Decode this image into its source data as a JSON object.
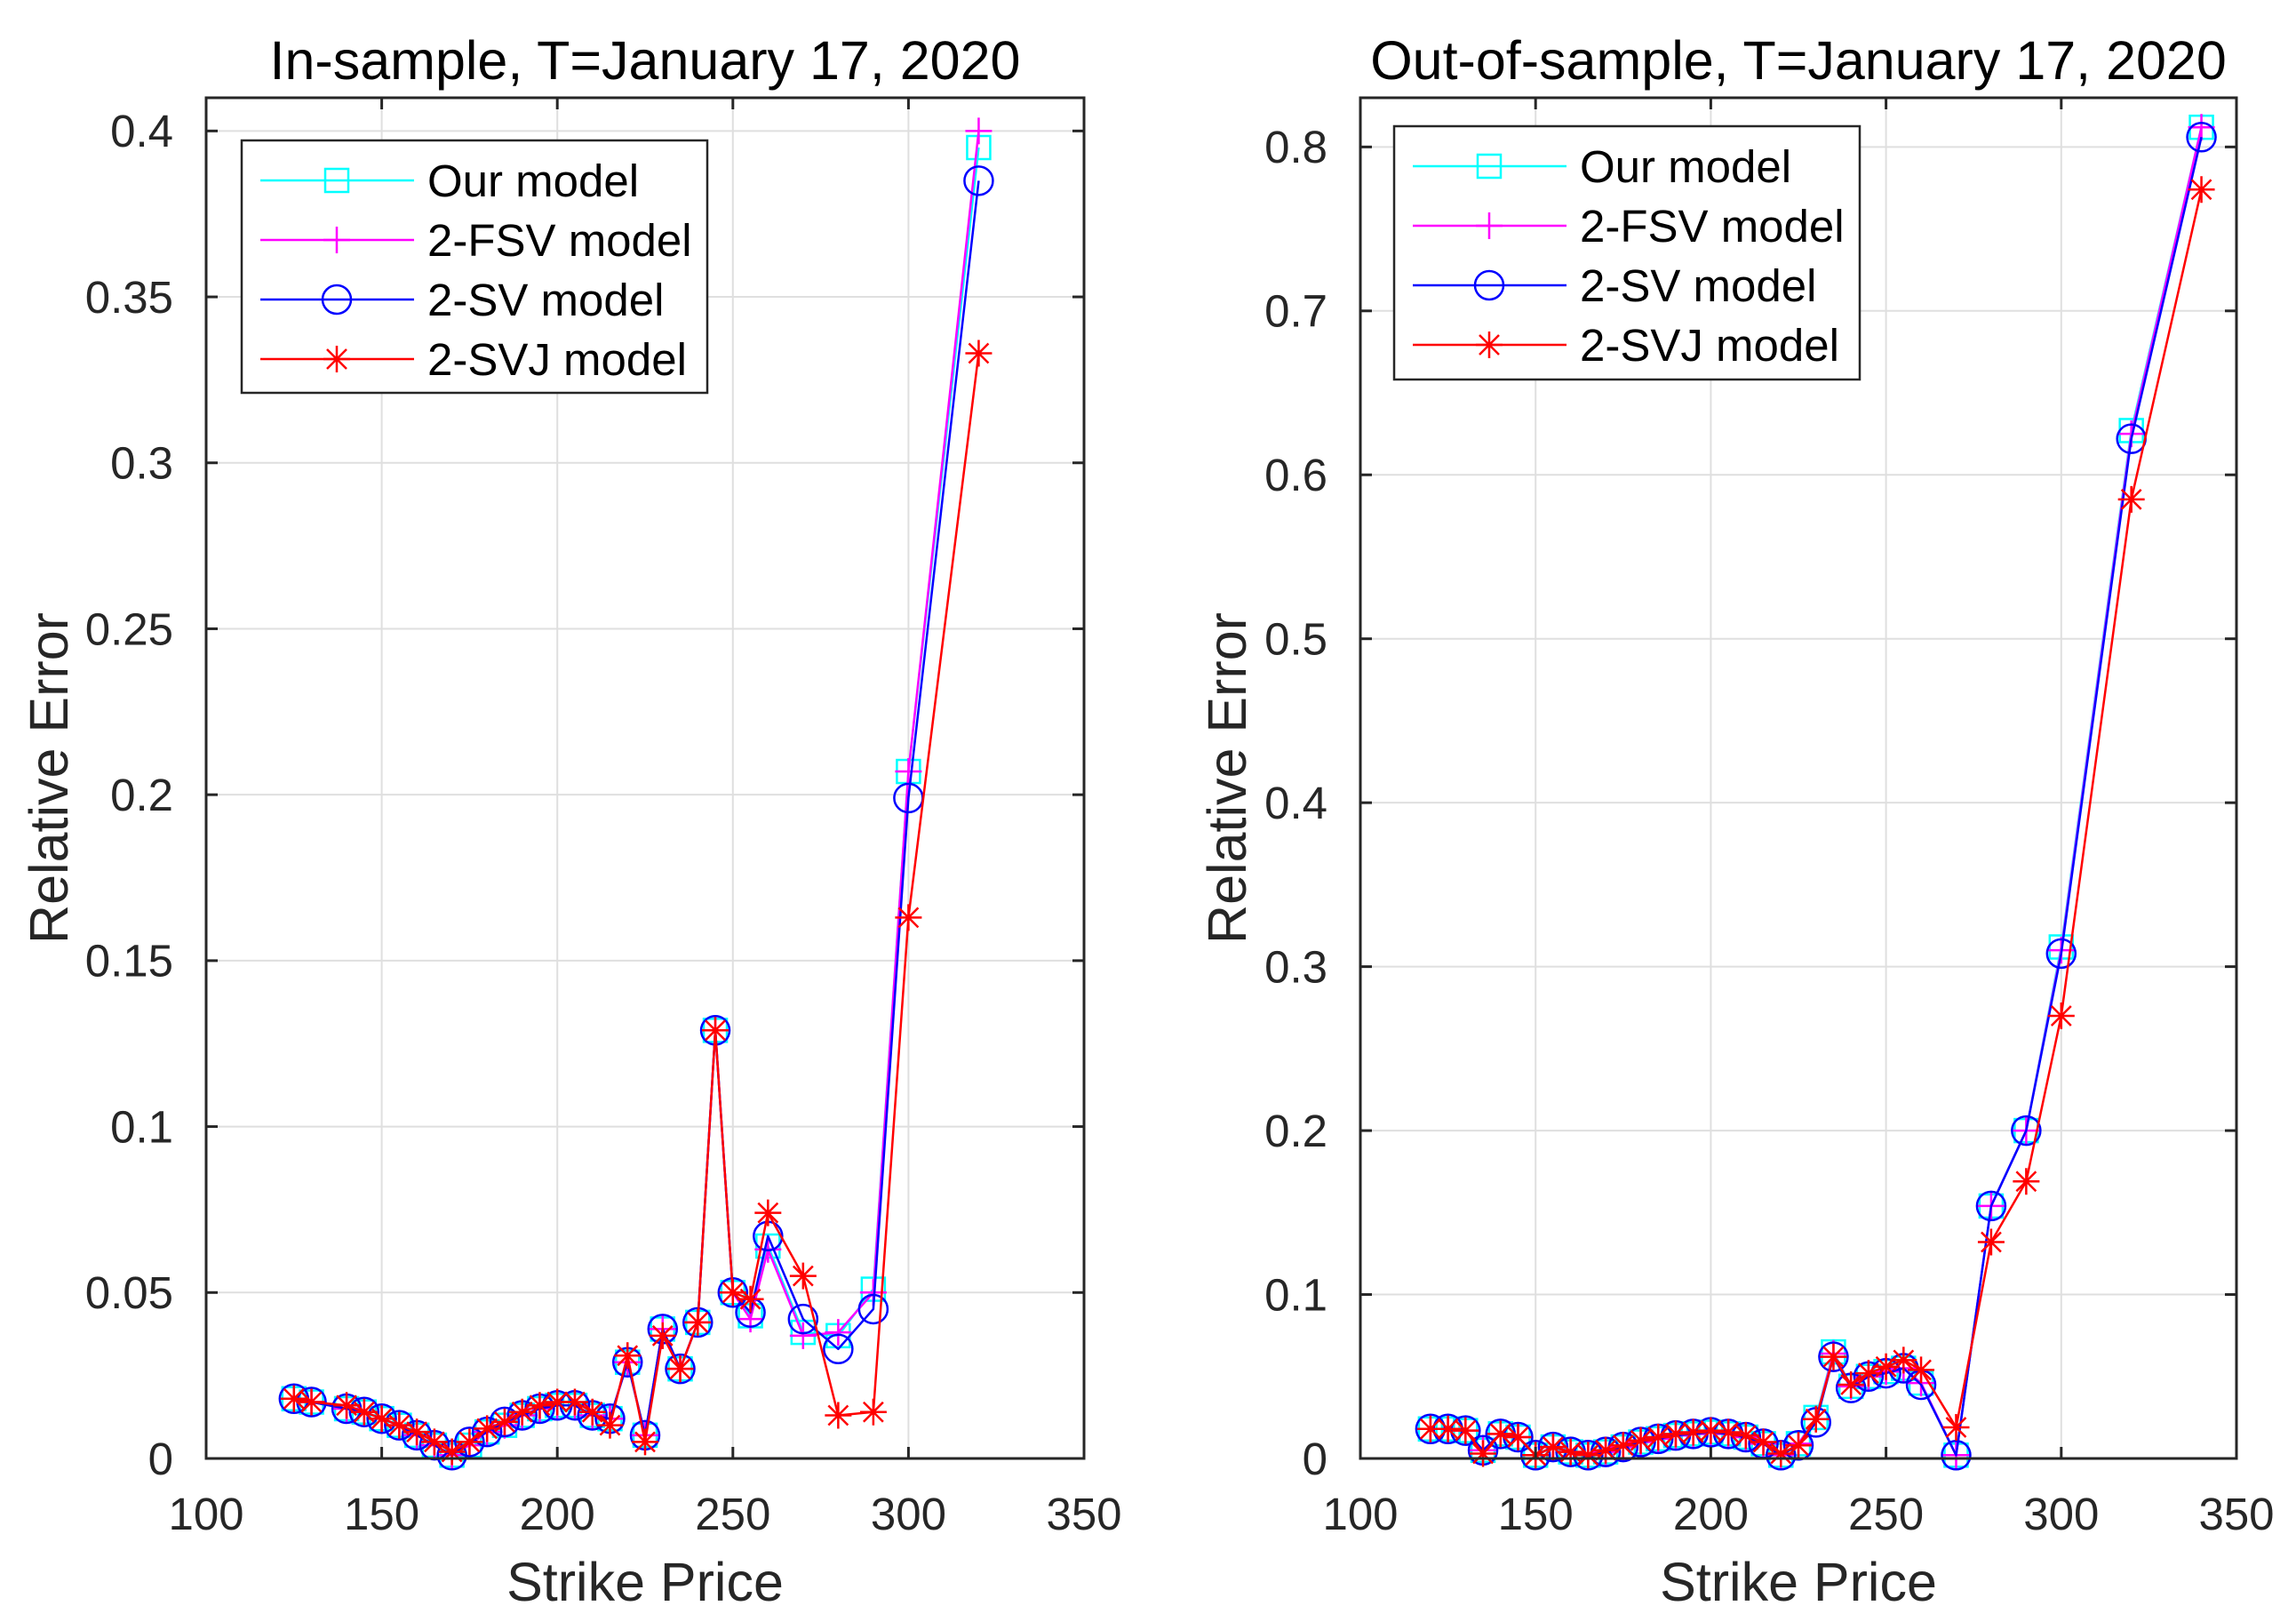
{
  "chart_data": [
    {
      "type": "line",
      "title": "In-sample, T=January 17, 2020",
      "xlabel": "Strike Price",
      "ylabel": "Relative Error",
      "xlim": [
        100,
        350
      ],
      "ylim": [
        0,
        0.41
      ],
      "xticks": [
        "100",
        "150",
        "200",
        "250",
        "300",
        "350"
      ],
      "yticks": [
        "0",
        "0.05",
        "0.1",
        "0.15",
        "0.2",
        "0.25",
        "0.3",
        "0.35",
        "0.4"
      ],
      "grid": true,
      "legend_position": "top-left",
      "x": [
        125,
        130,
        140,
        145,
        150,
        155,
        160,
        165,
        170,
        175,
        180,
        185,
        190,
        195,
        200,
        205,
        210,
        215,
        220,
        225,
        230,
        235,
        240,
        245,
        250,
        255,
        260,
        270,
        280,
        290,
        300,
        320
      ],
      "series": [
        {
          "name": "Our model",
          "color": "#00ffff",
          "marker": "square",
          "values": [
            0.018,
            0.017,
            0.015,
            0.014,
            0.012,
            0.01,
            0.007,
            0.004,
            0.001,
            0.004,
            0.008,
            0.01,
            0.013,
            0.015,
            0.016,
            0.016,
            0.013,
            0.012,
            0.029,
            0.007,
            0.039,
            0.027,
            0.041,
            0.129,
            0.05,
            0.043,
            0.064,
            0.038,
            0.037,
            0.051,
            0.207,
            0.395
          ]
        },
        {
          "name": "2-FSV model",
          "color": "#ff00ff",
          "marker": "plus",
          "values": [
            0.018,
            0.017,
            0.015,
            0.014,
            0.012,
            0.01,
            0.007,
            0.004,
            0.001,
            0.004,
            0.008,
            0.01,
            0.013,
            0.015,
            0.016,
            0.016,
            0.013,
            0.012,
            0.029,
            0.007,
            0.039,
            0.027,
            0.041,
            0.129,
            0.05,
            0.042,
            0.063,
            0.037,
            0.038,
            0.05,
            0.207,
            0.4
          ]
        },
        {
          "name": "2-SV model",
          "color": "#0000ff",
          "marker": "circle",
          "values": [
            0.018,
            0.017,
            0.015,
            0.014,
            0.012,
            0.01,
            0.007,
            0.004,
            0.001,
            0.005,
            0.008,
            0.011,
            0.013,
            0.015,
            0.016,
            0.016,
            0.013,
            0.012,
            0.029,
            0.007,
            0.039,
            0.027,
            0.041,
            0.129,
            0.05,
            0.044,
            0.067,
            0.042,
            0.033,
            0.045,
            0.199,
            0.385
          ]
        },
        {
          "name": "2-SVJ model",
          "color": "#ff0000",
          "marker": "asterisk",
          "values": [
            0.018,
            0.017,
            0.016,
            0.014,
            0.012,
            0.01,
            0.008,
            0.005,
            0.002,
            0.005,
            0.009,
            0.011,
            0.014,
            0.016,
            0.017,
            0.017,
            0.014,
            0.01,
            0.031,
            0.005,
            0.037,
            0.027,
            0.041,
            0.129,
            0.05,
            0.048,
            0.074,
            0.055,
            0.013,
            0.014,
            0.163,
            0.333
          ]
        }
      ]
    },
    {
      "type": "line",
      "title": "Out-of-sample, T=January 17, 2020",
      "xlabel": "Strike Price",
      "ylabel": "Relative Error",
      "xlim": [
        100,
        350
      ],
      "ylim": [
        0,
        0.83
      ],
      "xticks": [
        "100",
        "150",
        "200",
        "250",
        "300",
        "350"
      ],
      "yticks": [
        "0",
        "0.1",
        "0.2",
        "0.3",
        "0.4",
        "0.5",
        "0.6",
        "0.7",
        "0.8"
      ],
      "grid": true,
      "legend_position": "top-left",
      "x": [
        120,
        125,
        130,
        135,
        140,
        145,
        150,
        155,
        160,
        165,
        170,
        175,
        180,
        185,
        190,
        195,
        200,
        205,
        210,
        215,
        220,
        225,
        230,
        235,
        240,
        245,
        250,
        255,
        260,
        270,
        280,
        290,
        300,
        320,
        340
      ],
      "series": [
        {
          "name": "Our model",
          "color": "#00ffff",
          "marker": "square",
          "values": [
            0.018,
            0.018,
            0.017,
            0.005,
            0.015,
            0.013,
            0.002,
            0.007,
            0.004,
            0.002,
            0.004,
            0.007,
            0.01,
            0.012,
            0.014,
            0.015,
            0.016,
            0.015,
            0.013,
            0.009,
            0.002,
            0.009,
            0.025,
            0.065,
            0.044,
            0.05,
            0.053,
            0.055,
            0.046,
            0.002,
            0.154,
            0.2,
            0.312,
            0.627,
            0.812
          ]
        },
        {
          "name": "2-FSV model",
          "color": "#ff00ff",
          "marker": "plus",
          "values": [
            0.018,
            0.018,
            0.017,
            0.005,
            0.015,
            0.013,
            0.002,
            0.007,
            0.004,
            0.002,
            0.004,
            0.007,
            0.01,
            0.012,
            0.014,
            0.015,
            0.016,
            0.015,
            0.013,
            0.009,
            0.002,
            0.009,
            0.024,
            0.064,
            0.044,
            0.05,
            0.053,
            0.055,
            0.046,
            0.002,
            0.154,
            0.2,
            0.31,
            0.625,
            0.812
          ]
        },
        {
          "name": "2-SV model",
          "color": "#0000ff",
          "marker": "circle",
          "values": [
            0.018,
            0.018,
            0.017,
            0.005,
            0.015,
            0.013,
            0.002,
            0.007,
            0.004,
            0.002,
            0.004,
            0.007,
            0.01,
            0.012,
            0.014,
            0.015,
            0.016,
            0.015,
            0.013,
            0.009,
            0.002,
            0.008,
            0.022,
            0.062,
            0.043,
            0.05,
            0.052,
            0.055,
            0.045,
            0.002,
            0.154,
            0.2,
            0.308,
            0.622,
            0.806
          ]
        },
        {
          "name": "2-SVJ model",
          "color": "#ff0000",
          "marker": "asterisk",
          "values": [
            0.018,
            0.018,
            0.017,
            0.003,
            0.015,
            0.013,
            0.002,
            0.007,
            0.004,
            0.002,
            0.005,
            0.008,
            0.011,
            0.013,
            0.015,
            0.016,
            0.017,
            0.016,
            0.014,
            0.01,
            0.003,
            0.008,
            0.024,
            0.062,
            0.045,
            0.052,
            0.056,
            0.06,
            0.054,
            0.019,
            0.132,
            0.169,
            0.27,
            0.585,
            0.774
          ]
        }
      ]
    }
  ]
}
